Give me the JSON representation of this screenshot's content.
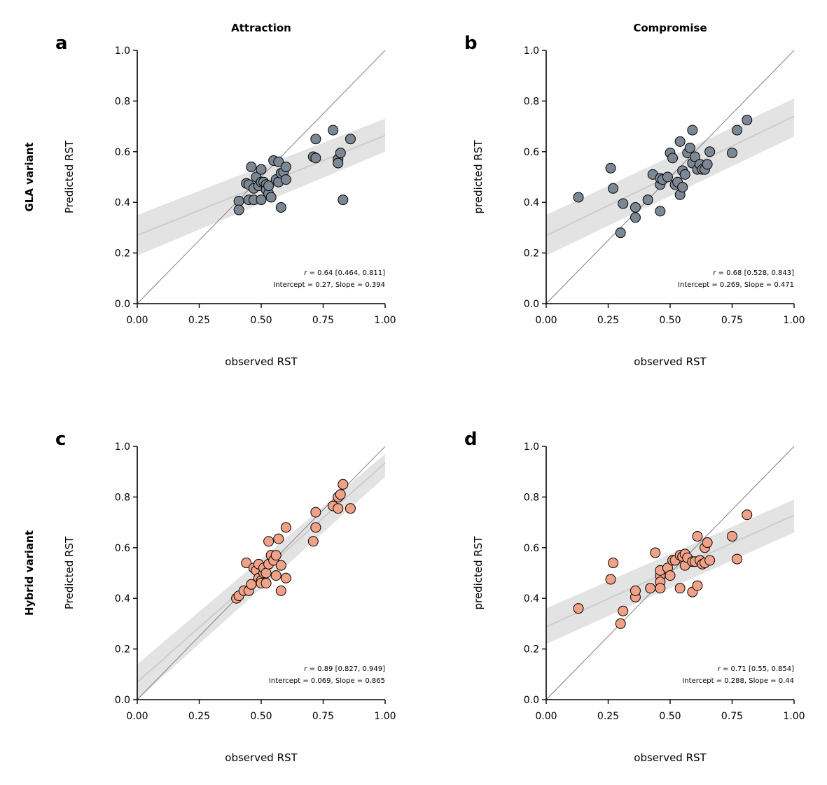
{
  "figure": {
    "column_titles": [
      "Attraction",
      "Compromise"
    ],
    "row_titles": [
      "GLA variant",
      "Hybrid variant"
    ],
    "colors": {
      "gla": "#7b8793",
      "hybrid": "#f0a288",
      "band": "#d9d9d9",
      "regression": "#cccccc",
      "identity": "#7f7f7f"
    }
  },
  "chart_data": [
    {
      "panel": "a",
      "type": "scatter",
      "column_title": "Attraction",
      "xlabel": "observed RST",
      "ylabel": "Predicted RST",
      "xlim": [
        0,
        1
      ],
      "ylim": [
        0,
        1
      ],
      "xticks": [
        "0.00",
        "0.25",
        "0.50",
        "0.75",
        "1.00"
      ],
      "yticks": [
        "0.0",
        "0.2",
        "0.4",
        "0.6",
        "0.8",
        "1.0"
      ],
      "stats_r_prefix": "r",
      "stats_line1": " = 0.64 [0.464, 0.811]",
      "stats_line2": "Intercept = 0.27, Slope = 0.394",
      "regression": {
        "intercept": 0.27,
        "slope": 0.394,
        "band_at_0": [
          0.19,
          0.35
        ],
        "band_at_1": [
          0.6,
          0.73
        ]
      },
      "color": "#7b8793",
      "points": [
        [
          0.41,
          0.405
        ],
        [
          0.41,
          0.37
        ],
        [
          0.44,
          0.475
        ],
        [
          0.45,
          0.41
        ],
        [
          0.45,
          0.47
        ],
        [
          0.46,
          0.54
        ],
        [
          0.47,
          0.41
        ],
        [
          0.47,
          0.455
        ],
        [
          0.48,
          0.5
        ],
        [
          0.49,
          0.465
        ],
        [
          0.5,
          0.53
        ],
        [
          0.5,
          0.48
        ],
        [
          0.5,
          0.41
        ],
        [
          0.51,
          0.48
        ],
        [
          0.52,
          0.47
        ],
        [
          0.52,
          0.45
        ],
        [
          0.53,
          0.435
        ],
        [
          0.53,
          0.465
        ],
        [
          0.54,
          0.42
        ],
        [
          0.55,
          0.565
        ],
        [
          0.56,
          0.49
        ],
        [
          0.57,
          0.56
        ],
        [
          0.57,
          0.48
        ],
        [
          0.58,
          0.515
        ],
        [
          0.58,
          0.38
        ],
        [
          0.59,
          0.52
        ],
        [
          0.6,
          0.54
        ],
        [
          0.6,
          0.49
        ],
        [
          0.71,
          0.58
        ],
        [
          0.72,
          0.575
        ],
        [
          0.72,
          0.65
        ],
        [
          0.79,
          0.685
        ],
        [
          0.81,
          0.57
        ],
        [
          0.81,
          0.555
        ],
        [
          0.82,
          0.595
        ],
        [
          0.83,
          0.41
        ],
        [
          0.86,
          0.65
        ]
      ]
    },
    {
      "panel": "b",
      "type": "scatter",
      "column_title": "Compromise",
      "xlabel": "observed RST",
      "ylabel": "predicted RST",
      "xlim": [
        0,
        1
      ],
      "ylim": [
        0,
        1
      ],
      "xticks": [
        "0.00",
        "0.25",
        "0.50",
        "0.75",
        "1.00"
      ],
      "yticks": [
        "0.0",
        "0.2",
        "0.4",
        "0.6",
        "0.8",
        "1.0"
      ],
      "stats_r_prefix": "r",
      "stats_line1": " = 0.68 [0.528, 0.843]",
      "stats_line2": "Intercept = 0.269, Slope = 0.471",
      "regression": {
        "intercept": 0.269,
        "slope": 0.471,
        "band_at_0": [
          0.19,
          0.35
        ],
        "band_at_1": [
          0.66,
          0.81
        ]
      },
      "color": "#7b8793",
      "points": [
        [
          0.13,
          0.42
        ],
        [
          0.26,
          0.535
        ],
        [
          0.27,
          0.455
        ],
        [
          0.3,
          0.28
        ],
        [
          0.31,
          0.395
        ],
        [
          0.36,
          0.34
        ],
        [
          0.36,
          0.38
        ],
        [
          0.41,
          0.41
        ],
        [
          0.43,
          0.51
        ],
        [
          0.46,
          0.47
        ],
        [
          0.46,
          0.495
        ],
        [
          0.46,
          0.365
        ],
        [
          0.47,
          0.49
        ],
        [
          0.49,
          0.5
        ],
        [
          0.5,
          0.595
        ],
        [
          0.51,
          0.575
        ],
        [
          0.52,
          0.47
        ],
        [
          0.53,
          0.48
        ],
        [
          0.54,
          0.43
        ],
        [
          0.54,
          0.64
        ],
        [
          0.55,
          0.525
        ],
        [
          0.55,
          0.46
        ],
        [
          0.56,
          0.51
        ],
        [
          0.57,
          0.595
        ],
        [
          0.58,
          0.615
        ],
        [
          0.59,
          0.555
        ],
        [
          0.59,
          0.685
        ],
        [
          0.6,
          0.58
        ],
        [
          0.61,
          0.53
        ],
        [
          0.62,
          0.55
        ],
        [
          0.63,
          0.53
        ],
        [
          0.64,
          0.53
        ],
        [
          0.65,
          0.55
        ],
        [
          0.66,
          0.6
        ],
        [
          0.75,
          0.595
        ],
        [
          0.77,
          0.685
        ],
        [
          0.81,
          0.725
        ]
      ]
    },
    {
      "panel": "c",
      "type": "scatter",
      "column_title": "",
      "xlabel": "observed RST",
      "ylabel": "Predicted RST",
      "xlim": [
        0,
        1
      ],
      "ylim": [
        0,
        1
      ],
      "xticks": [
        "0.00",
        "0.25",
        "0.50",
        "0.75",
        "1.00"
      ],
      "yticks": [
        "0.0",
        "0.2",
        "0.4",
        "0.6",
        "0.8",
        "1.0"
      ],
      "stats_r_prefix": "r",
      "stats_line1": " = 0.89 [0.827, 0.949]",
      "stats_line2": "Intercept = 0.069, Slope = 0.865",
      "regression": {
        "intercept": 0.069,
        "slope": 0.865,
        "band_at_0": [
          0.0,
          0.14
        ],
        "band_at_1": [
          0.88,
          0.97
        ]
      },
      "color": "#f0a288",
      "points": [
        [
          0.4,
          0.4
        ],
        [
          0.41,
          0.41
        ],
        [
          0.43,
          0.43
        ],
        [
          0.44,
          0.54
        ],
        [
          0.45,
          0.43
        ],
        [
          0.46,
          0.455
        ],
        [
          0.47,
          0.52
        ],
        [
          0.48,
          0.51
        ],
        [
          0.49,
          0.48
        ],
        [
          0.49,
          0.535
        ],
        [
          0.5,
          0.47
        ],
        [
          0.5,
          0.46
        ],
        [
          0.51,
          0.5
        ],
        [
          0.51,
          0.52
        ],
        [
          0.52,
          0.46
        ],
        [
          0.52,
          0.5
        ],
        [
          0.53,
          0.625
        ],
        [
          0.53,
          0.535
        ],
        [
          0.54,
          0.57
        ],
        [
          0.55,
          0.55
        ],
        [
          0.56,
          0.57
        ],
        [
          0.56,
          0.49
        ],
        [
          0.57,
          0.635
        ],
        [
          0.58,
          0.43
        ],
        [
          0.58,
          0.53
        ],
        [
          0.6,
          0.68
        ],
        [
          0.6,
          0.48
        ],
        [
          0.71,
          0.625
        ],
        [
          0.72,
          0.74
        ],
        [
          0.72,
          0.68
        ],
        [
          0.79,
          0.765
        ],
        [
          0.81,
          0.8
        ],
        [
          0.81,
          0.755
        ],
        [
          0.82,
          0.81
        ],
        [
          0.83,
          0.85
        ],
        [
          0.86,
          0.755
        ]
      ]
    },
    {
      "panel": "d",
      "type": "scatter",
      "column_title": "",
      "xlabel": "observed RST",
      "ylabel": "predicted RST",
      "xlim": [
        0,
        1
      ],
      "ylim": [
        0,
        1
      ],
      "xticks": [
        "0.00",
        "0.25",
        "0.50",
        "0.75",
        "1.00"
      ],
      "yticks": [
        "0.0",
        "0.2",
        "0.4",
        "0.6",
        "0.8",
        "1.0"
      ],
      "stats_r_prefix": "r",
      "stats_line1": " = 0.71 [0.55, 0.854]",
      "stats_line2": "Intercept = 0.288, Slope = 0.44",
      "regression": {
        "intercept": 0.288,
        "slope": 0.44,
        "band_at_0": [
          0.22,
          0.36
        ],
        "band_at_1": [
          0.66,
          0.79
        ]
      },
      "color": "#f0a288",
      "points": [
        [
          0.13,
          0.36
        ],
        [
          0.26,
          0.475
        ],
        [
          0.27,
          0.54
        ],
        [
          0.3,
          0.3
        ],
        [
          0.31,
          0.35
        ],
        [
          0.36,
          0.405
        ],
        [
          0.36,
          0.43
        ],
        [
          0.42,
          0.44
        ],
        [
          0.44,
          0.58
        ],
        [
          0.46,
          0.49
        ],
        [
          0.46,
          0.51
        ],
        [
          0.46,
          0.465
        ],
        [
          0.46,
          0.44
        ],
        [
          0.49,
          0.52
        ],
        [
          0.5,
          0.49
        ],
        [
          0.51,
          0.55
        ],
        [
          0.52,
          0.55
        ],
        [
          0.54,
          0.44
        ],
        [
          0.54,
          0.57
        ],
        [
          0.55,
          0.565
        ],
        [
          0.56,
          0.53
        ],
        [
          0.56,
          0.575
        ],
        [
          0.57,
          0.56
        ],
        [
          0.59,
          0.425
        ],
        [
          0.59,
          0.545
        ],
        [
          0.6,
          0.545
        ],
        [
          0.61,
          0.645
        ],
        [
          0.61,
          0.45
        ],
        [
          0.62,
          0.55
        ],
        [
          0.63,
          0.535
        ],
        [
          0.64,
          0.6
        ],
        [
          0.64,
          0.54
        ],
        [
          0.65,
          0.62
        ],
        [
          0.66,
          0.55
        ],
        [
          0.75,
          0.645
        ],
        [
          0.77,
          0.555
        ],
        [
          0.81,
          0.73
        ]
      ]
    }
  ]
}
